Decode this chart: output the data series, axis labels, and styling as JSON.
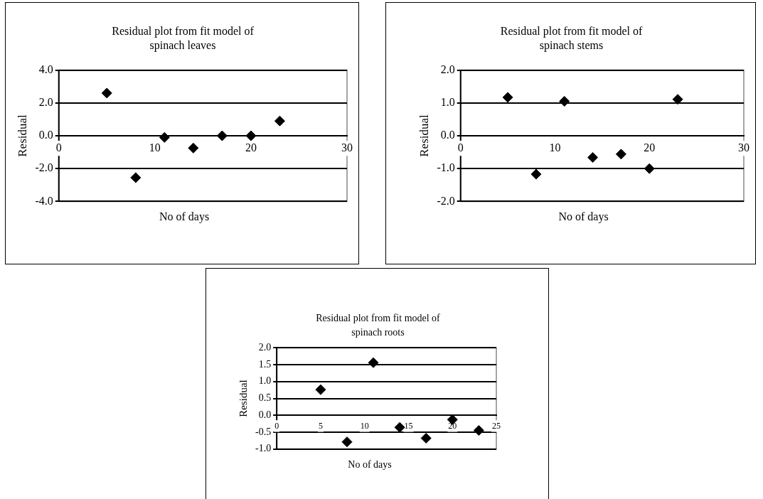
{
  "chart_data": [
    {
      "type": "scatter",
      "title": "Residual plot from fit model of spinach leaves",
      "xlabel": "No of days",
      "ylabel": "Residual",
      "color": "#000000",
      "marker": "diamond",
      "grid": "y",
      "x": [
        5,
        8,
        11,
        14,
        17,
        20,
        23
      ],
      "values": [
        2.6,
        -2.55,
        -0.1,
        -0.75,
        0.0,
        0.0,
        0.9
      ],
      "xlim": [
        0,
        30
      ],
      "xticks": [
        0,
        10,
        20,
        30
      ],
      "ylim": [
        -4,
        4
      ],
      "yticks": [
        {
          "value": -4,
          "label": "-4.0"
        },
        {
          "value": -2,
          "label": "-2.0"
        },
        {
          "value": 0,
          "label": "0.0"
        },
        {
          "value": 2,
          "label": "2.0"
        },
        {
          "value": 4,
          "label": "4.0"
        }
      ]
    },
    {
      "type": "scatter",
      "title": "Residual plot from fit model of spinach stems",
      "xlabel": "No of days",
      "ylabel": "Residual",
      "color": "#000000",
      "marker": "diamond",
      "grid": "y",
      "x": [
        5,
        8,
        11,
        14,
        17,
        20,
        23
      ],
      "values": [
        1.17,
        -1.17,
        1.05,
        -0.66,
        -0.56,
        -1.0,
        1.11
      ],
      "xlim": [
        0,
        30
      ],
      "xticks": [
        0,
        10,
        20,
        30
      ],
      "ylim": [
        -2,
        2
      ],
      "yticks": [
        {
          "value": -2,
          "label": "-2.0"
        },
        {
          "value": -1,
          "label": "-1.0"
        },
        {
          "value": 0,
          "label": "0.0"
        },
        {
          "value": 1,
          "label": "1.0"
        },
        {
          "value": 2,
          "label": "2.0"
        }
      ]
    },
    {
      "type": "scatter",
      "title": "Residual plot from fit model of spinach roots",
      "xlabel": "No of days",
      "ylabel": "Residual",
      "color": "#000000",
      "marker": "diamond",
      "grid": "y",
      "x": [
        5,
        8,
        11,
        14,
        17,
        20,
        23
      ],
      "values": [
        0.76,
        -0.79,
        1.56,
        -0.36,
        -0.68,
        -0.13,
        -0.45
      ],
      "xlim": [
        0,
        25
      ],
      "xticks": [
        0,
        5,
        10,
        15,
        20,
        25
      ],
      "ylim": [
        -1,
        2
      ],
      "yticks": [
        {
          "value": -1,
          "label": "-1.0"
        },
        {
          "value": -0.5,
          "label": "-0.5"
        },
        {
          "value": 0,
          "label": "0.0"
        },
        {
          "value": 0.5,
          "label": "0.5"
        },
        {
          "value": 1,
          "label": "1.0"
        },
        {
          "value": 1.5,
          "label": "1.5"
        },
        {
          "value": 2,
          "label": "2.0"
        }
      ]
    }
  ]
}
